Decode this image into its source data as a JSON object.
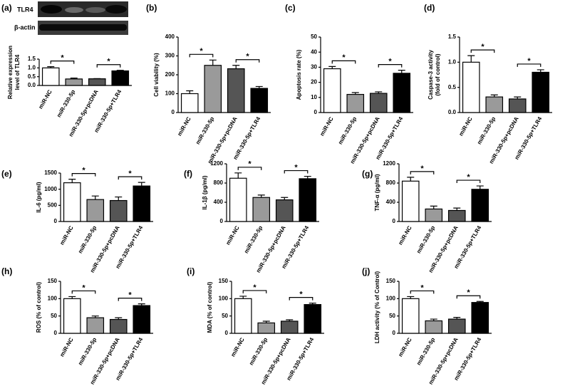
{
  "chart_data": [
    {
      "type": "bar",
      "panel_label": "(a)",
      "blot_labels": [
        "TLR4",
        "β-actin"
      ],
      "ylabel": [
        "Relative expression",
        "level of TLR4"
      ],
      "categories": [
        "miR-NC",
        "miR-330-5p",
        "miR-330-5p+pcDNA",
        "miR-330-5p+TLR4"
      ],
      "values": [
        1.0,
        0.37,
        0.38,
        0.83
      ],
      "errors": [
        0.07,
        0.05,
        0.01,
        0.03
      ],
      "colors": [
        "#ffffff",
        "#9a9a9a",
        "#555555",
        "#000000"
      ],
      "ylim": [
        0,
        1.5
      ],
      "yticks": [
        {
          "value": 0,
          "label": "0.0"
        },
        {
          "value": 0.5,
          "label": "0.5"
        },
        {
          "value": 1,
          "label": "1.0"
        },
        {
          "value": 1.5,
          "label": "1.5"
        }
      ],
      "annotations": [
        {
          "text": "*",
          "between": [
            "miR-NC",
            "miR-330-5p"
          ]
        },
        {
          "text": "*",
          "between": [
            "miR-330-5p+pcDNA",
            "miR-330-5p+TLR4"
          ]
        }
      ]
    },
    {
      "type": "bar",
      "panel_label": "(b)",
      "ylabel": [
        "Cell viability (%)"
      ],
      "categories": [
        "miR-NC",
        "miR-330-5p",
        "miR-330-5p+pcDNA",
        "miR-330-5p+TLR4"
      ],
      "values": [
        100,
        250,
        232,
        128
      ],
      "errors": [
        15,
        28,
        18,
        10
      ],
      "colors": [
        "#ffffff",
        "#9a9a9a",
        "#555555",
        "#000000"
      ],
      "ylim": [
        0,
        400
      ],
      "yticks": [
        0,
        100,
        200,
        300,
        400
      ],
      "annotations": [
        {
          "text": "*",
          "between": [
            "miR-NC",
            "miR-330-5p"
          ]
        },
        {
          "text": "*",
          "between": [
            "miR-330-5p+pcDNA",
            "miR-330-5p+TLR4"
          ]
        }
      ]
    },
    {
      "type": "bar",
      "panel_label": "(c)",
      "ylabel": [
        "Apoptosis rate (%)"
      ],
      "categories": [
        "miR-NC",
        "miR-330-5p",
        "miR-330-5p+pcDNA",
        "miR-330-5p+TLR4"
      ],
      "values": [
        29,
        12,
        12.7,
        26
      ],
      "errors": [
        1.5,
        1.2,
        1,
        2
      ],
      "colors": [
        "#ffffff",
        "#9a9a9a",
        "#555555",
        "#000000"
      ],
      "ylim": [
        0,
        50
      ],
      "yticks": [
        0,
        10,
        20,
        30,
        40,
        50
      ],
      "annotations": [
        {
          "text": "*",
          "between": [
            "miR-NC",
            "miR-330-5p"
          ]
        },
        {
          "text": "*",
          "between": [
            "miR-330-5p+pcDNA",
            "miR-330-5p+TLR4"
          ]
        }
      ]
    },
    {
      "type": "bar",
      "panel_label": "(d)",
      "ylabel": [
        "Caspase-3 activity",
        "(fold of control)"
      ],
      "categories": [
        "miR-NC",
        "miR-330-5p",
        "miR-330-5p+pcDNA",
        "miR-330-5p+TLR4"
      ],
      "values": [
        1.0,
        0.31,
        0.27,
        0.8
      ],
      "errors": [
        0.13,
        0.04,
        0.04,
        0.05
      ],
      "colors": [
        "#ffffff",
        "#9a9a9a",
        "#555555",
        "#000000"
      ],
      "ylim": [
        0,
        1.5
      ],
      "yticks": [
        {
          "value": 0,
          "label": "0.0"
        },
        {
          "value": 0.5,
          "label": "0.5"
        },
        {
          "value": 1,
          "label": "1.0"
        },
        {
          "value": 1.5,
          "label": "1.5"
        }
      ],
      "annotations": [
        {
          "text": "*",
          "between": [
            "miR-NC",
            "miR-330-5p"
          ]
        },
        {
          "text": "*",
          "between": [
            "miR-330-5p+pcDNA",
            "miR-330-5p+TLR4"
          ]
        }
      ]
    },
    {
      "type": "bar",
      "panel_label": "(e)",
      "ylabel": [
        "IL-6 (pg/ml)"
      ],
      "categories": [
        "miR-NC",
        "miR-330-5p",
        "miR-330-5p+pcDNA",
        "miR-330-5p+TLR4"
      ],
      "values": [
        1200,
        680,
        650,
        1100
      ],
      "errors": [
        110,
        110,
        110,
        110
      ],
      "colors": [
        "#ffffff",
        "#9a9a9a",
        "#555555",
        "#000000"
      ],
      "ylim": [
        0,
        1500
      ],
      "yticks": [
        0,
        500,
        1000,
        1500
      ],
      "annotations": [
        {
          "text": "*",
          "between": [
            "miR-NC",
            "miR-330-5p"
          ]
        },
        {
          "text": "*",
          "between": [
            "miR-330-5p+pcDNA",
            "miR-330-5p+TLR4"
          ]
        }
      ]
    },
    {
      "type": "bar",
      "panel_label": "(f)",
      "ylabel": [
        "IL-1β (pg/ml)"
      ],
      "categories": [
        "miR-NC",
        "miR-330-5p",
        "miR-330-5p+pcDNA",
        "miR-330-5p+TLR4"
      ],
      "values": [
        900,
        500,
        450,
        890
      ],
      "errors": [
        110,
        50,
        50,
        50
      ],
      "colors": [
        "#ffffff",
        "#9a9a9a",
        "#555555",
        "#000000"
      ],
      "ylim": [
        0,
        1200
      ],
      "yticks": [
        0,
        400,
        800,
        1200
      ],
      "annotations": [
        {
          "text": "*",
          "between": [
            "miR-NC",
            "miR-330-5p"
          ]
        },
        {
          "text": "*",
          "between": [
            "miR-330-5p+pcDNA",
            "miR-330-5p+TLR4"
          ]
        }
      ]
    },
    {
      "type": "bar",
      "panel_label": "(g)",
      "ylabel": [
        "TNF-α (pg/ml)"
      ],
      "categories": [
        "miR-NC",
        "miR-330-5p",
        "miR-330-5p+pcDNA",
        "miR-330-5p+TLR4"
      ],
      "values": [
        840,
        260,
        230,
        670
      ],
      "errors": [
        80,
        60,
        50,
        70
      ],
      "colors": [
        "#ffffff",
        "#9a9a9a",
        "#555555",
        "#000000"
      ],
      "ylim": [
        0,
        1200
      ],
      "yticks": [
        0,
        400,
        800,
        1200
      ],
      "annotations": [
        {
          "text": "*",
          "between": [
            "miR-NC",
            "miR-330-5p"
          ]
        },
        {
          "text": "*",
          "between": [
            "miR-330-5p+pcDNA",
            "miR-330-5p+TLR4"
          ]
        }
      ]
    },
    {
      "type": "bar",
      "panel_label": "(h)",
      "ylabel": [
        "ROS (% of control)"
      ],
      "categories": [
        "miR-NC",
        "miR-330-5p",
        "miR-330-5p+pcDNA",
        "miR-330-5p+TLR4"
      ],
      "values": [
        100,
        45,
        40,
        80
      ],
      "errors": [
        6,
        5,
        5,
        5
      ],
      "colors": [
        "#ffffff",
        "#9a9a9a",
        "#555555",
        "#000000"
      ],
      "ylim": [
        0,
        150
      ],
      "yticks": [
        0,
        50,
        100,
        150
      ],
      "annotations": [
        {
          "text": "*",
          "between": [
            "miR-NC",
            "miR-330-5p"
          ]
        },
        {
          "text": "*",
          "between": [
            "miR-330-5p+pcDNA",
            "miR-330-5p+TLR4"
          ]
        }
      ]
    },
    {
      "type": "bar",
      "panel_label": "(i)",
      "ylabel": [
        "MDA (% of control)"
      ],
      "categories": [
        "miR-NC",
        "miR-330-5p",
        "miR-330-5p+pcDNA",
        "miR-330-5p+TLR4"
      ],
      "values": [
        100,
        30,
        35,
        83
      ],
      "errors": [
        7,
        5,
        4,
        4
      ],
      "colors": [
        "#ffffff",
        "#9a9a9a",
        "#555555",
        "#000000"
      ],
      "ylim": [
        0,
        150
      ],
      "yticks": [
        0,
        50,
        100,
        150
      ],
      "annotations": [
        {
          "text": "*",
          "between": [
            "miR-NC",
            "miR-330-5p"
          ]
        },
        {
          "text": "*",
          "between": [
            "miR-330-5p+pcDNA",
            "miR-330-5p+TLR4"
          ]
        }
      ]
    },
    {
      "type": "bar",
      "panel_label": "(j)",
      "ylabel": [
        "LDH activity (% of Control)"
      ],
      "categories": [
        "miR-NC",
        "miR-330-5p",
        "miR-330-5p+pcDNA",
        "miR-330-5p+TLR4"
      ],
      "values": [
        100,
        36,
        41,
        89
      ],
      "errors": [
        6,
        5,
        5,
        3
      ],
      "colors": [
        "#ffffff",
        "#9a9a9a",
        "#555555",
        "#000000"
      ],
      "ylim": [
        0,
        150
      ],
      "yticks": [
        0,
        50,
        100,
        150
      ],
      "annotations": [
        {
          "text": "*",
          "between": [
            "miR-NC",
            "miR-330-5p"
          ]
        },
        {
          "text": "*",
          "between": [
            "miR-330-5p+pcDNA",
            "miR-330-5p+TLR4"
          ]
        }
      ]
    }
  ]
}
